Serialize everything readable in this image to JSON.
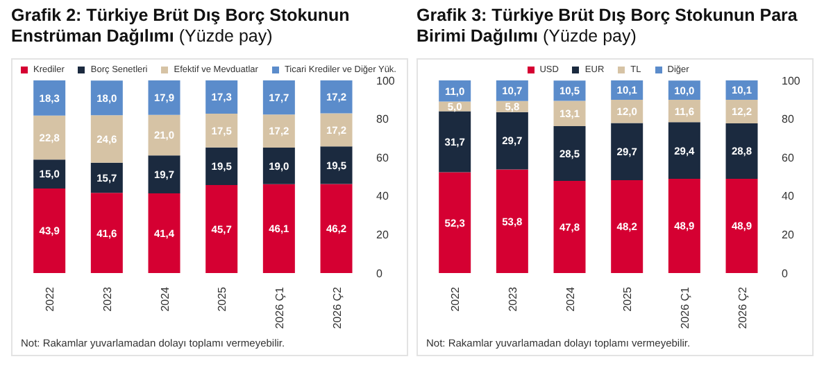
{
  "chart_data": [
    {
      "type": "bar",
      "title": "Grafik 2: Türkiye Brüt Dış Borç Stokunun Enstrüman Dağılımı",
      "subtitle": "(Yüzde pay)",
      "categories": [
        "2022",
        "2023",
        "2024",
        "2025",
        "2026 Ç1",
        "2026 Ç2"
      ],
      "stacked": true,
      "legend": "top",
      "ylim": [
        0,
        100
      ],
      "yticks": [
        0,
        20,
        40,
        60,
        80,
        100
      ],
      "series": [
        {
          "name": "Krediler",
          "color": "#d50032",
          "values": [
            43.9,
            41.6,
            41.4,
            45.7,
            46.1,
            46.2
          ],
          "value_labels": [
            "43,9",
            "41,6",
            "41,4",
            "45,7",
            "46,1",
            "46,2"
          ]
        },
        {
          "name": "Borç Senetleri",
          "color": "#1b2a3f",
          "values": [
            15.0,
            15.7,
            19.7,
            19.5,
            19.0,
            19.5
          ],
          "value_labels": [
            "15,0",
            "15,7",
            "19,7",
            "19,5",
            "19,0",
            "19,5"
          ]
        },
        {
          "name": "Efektif ve Mevduatlar",
          "color": "#d6c3a5",
          "values": [
            22.8,
            24.6,
            21.0,
            17.5,
            17.2,
            17.2
          ],
          "value_labels": [
            "22,8",
            "24,6",
            "21,0",
            "17,5",
            "17,2",
            "17,2"
          ]
        },
        {
          "name": "Ticari Krediler ve Diğer Yük.",
          "color": "#5b8ccb",
          "values": [
            18.3,
            18.0,
            17.9,
            17.3,
            17.7,
            17.2
          ],
          "value_labels": [
            "18,3",
            "18,0",
            "17,9",
            "17,3",
            "17,7",
            "17,2"
          ]
        }
      ],
      "annotations": [
        "Not: Rakamlar yuvarlamadan dolayı toplamı vermeyebilir."
      ]
    },
    {
      "type": "bar",
      "title": "Grafik 3: Türkiye Brüt Dış Borç Stokunun Para Birimi Dağılımı",
      "subtitle": "(Yüzde pay)",
      "categories": [
        "2022",
        "2023",
        "2024",
        "2025",
        "2026 Ç1",
        "2026 Ç2"
      ],
      "stacked": true,
      "legend": "top",
      "ylim": [
        0,
        100
      ],
      "yticks": [
        0,
        20,
        40,
        60,
        80,
        100
      ],
      "series": [
        {
          "name": "USD",
          "color": "#d50032",
          "values": [
            52.3,
            53.8,
            47.8,
            48.2,
            48.9,
            48.9
          ],
          "value_labels": [
            "52,3",
            "53,8",
            "47,8",
            "48,2",
            "48,9",
            "48,9"
          ]
        },
        {
          "name": "EUR",
          "color": "#1b2a3f",
          "values": [
            31.7,
            29.7,
            28.5,
            29.7,
            29.4,
            28.8
          ],
          "value_labels": [
            "31,7",
            "29,7",
            "28,5",
            "29,7",
            "29,4",
            "28,8"
          ]
        },
        {
          "name": "TL",
          "color": "#d6c3a5",
          "values": [
            5.0,
            5.8,
            13.1,
            12.0,
            11.6,
            12.2
          ],
          "value_labels": [
            "5,0",
            "5,8",
            "13,1",
            "12,0",
            "11,6",
            "12,2"
          ]
        },
        {
          "name": "Diğer",
          "color": "#5b8ccb",
          "values": [
            11.0,
            10.7,
            10.5,
            10.1,
            10.0,
            10.1
          ],
          "value_labels": [
            "11,0",
            "10,7",
            "10,5",
            "10,1",
            "10,0",
            "10,1"
          ]
        }
      ],
      "annotations": [
        "Not: Rakamlar yuvarlamadan dolayı toplamı vermeyebilir."
      ]
    }
  ]
}
